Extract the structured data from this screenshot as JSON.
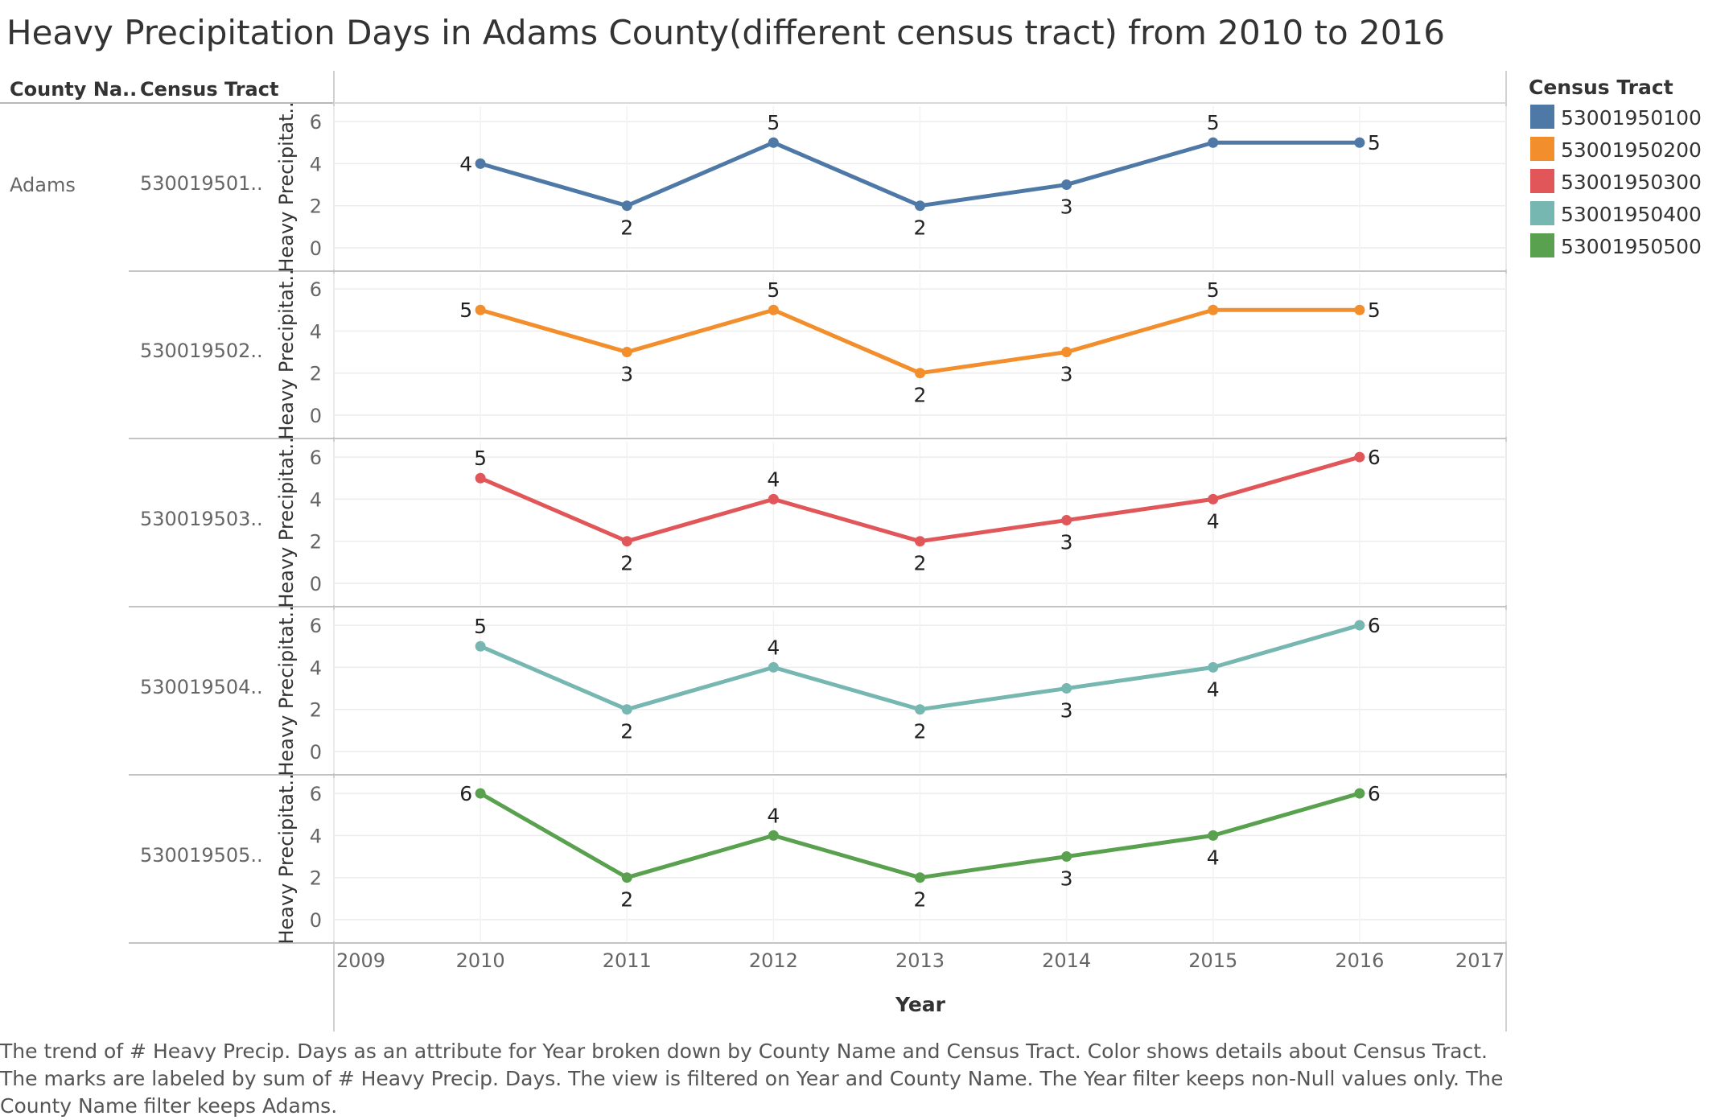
{
  "chart_data": {
    "type": "line",
    "title": "Heavy Precipitation Days in Adams County(different census tract) from 2010 to 2016",
    "row_headers": [
      "County Na..",
      "Census Tract"
    ],
    "county": "Adams",
    "xlabel": "Year",
    "ylabel": "Heavy Precipitat..",
    "x_ticks": [
      "2009",
      "2010",
      "2011",
      "2012",
      "2013",
      "2014",
      "2015",
      "2016",
      "2017"
    ],
    "xlim": [
      2009,
      2017
    ],
    "ylim": [
      0,
      6.5
    ],
    "y_ticks": [
      "0",
      "2",
      "4",
      "6"
    ],
    "x": [
      2010,
      2011,
      2012,
      2013,
      2014,
      2015,
      2016
    ],
    "legend_title": "Census Tract",
    "legend_position": "right",
    "grid": true,
    "series": [
      {
        "name": "53001950100",
        "row_label": "530019501..",
        "color": "#4e79a7",
        "values": [
          4,
          2,
          5,
          2,
          3,
          5,
          5
        ],
        "label_pos": [
          "left",
          "below",
          "above",
          "below",
          "below",
          "above",
          "right"
        ]
      },
      {
        "name": "53001950200",
        "row_label": "530019502..",
        "color": "#f28e2b",
        "values": [
          5,
          3,
          5,
          2,
          3,
          5,
          5
        ],
        "label_pos": [
          "left",
          "below",
          "above",
          "below",
          "below",
          "above",
          "right"
        ]
      },
      {
        "name": "53001950300",
        "row_label": "530019503..",
        "color": "#e15759",
        "values": [
          5,
          2,
          4,
          2,
          3,
          4,
          6
        ],
        "label_pos": [
          "above",
          "below",
          "above",
          "below",
          "below",
          "below",
          "right"
        ]
      },
      {
        "name": "53001950400",
        "row_label": "530019504..",
        "color": "#76b7b2",
        "values": [
          5,
          2,
          4,
          2,
          3,
          4,
          6
        ],
        "label_pos": [
          "above",
          "below",
          "above",
          "below",
          "below",
          "below",
          "right"
        ]
      },
      {
        "name": "53001950500",
        "row_label": "530019505..",
        "color": "#59a14f",
        "values": [
          6,
          2,
          4,
          2,
          3,
          4,
          6
        ],
        "label_pos": [
          "left",
          "below",
          "above",
          "below",
          "below",
          "below",
          "right"
        ]
      }
    ]
  },
  "caption": "The trend of # Heavy Precip. Days as an attribute for Year broken down by County Name and Census Tract.  Color shows details about Census Tract.  The marks are labeled by sum of # Heavy Precip. Days. The view is filtered on Year and County Name. The Year filter keeps non-Null values only. The County Name filter keeps Adams."
}
